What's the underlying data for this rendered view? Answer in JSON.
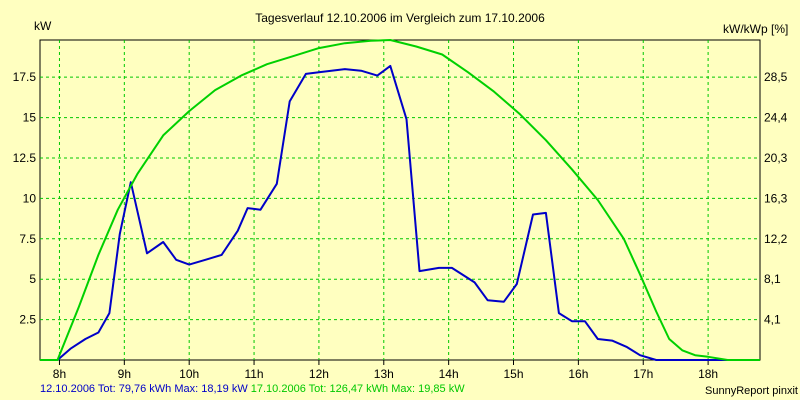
{
  "chart_data": {
    "type": "line",
    "title": "Tagesverlauf 12.10.2006 im Vergleich zum 17.10.2006",
    "ylabel_left": "kW",
    "ylabel_right": "kW/kWp [%]",
    "xlim": [
      7.7,
      18.8
    ],
    "ylim": [
      0,
      19.8
    ],
    "x_ticks": [
      8,
      9,
      10,
      11,
      12,
      13,
      14,
      15,
      16,
      17,
      18
    ],
    "x_tick_labels": [
      "8h",
      "9h",
      "10h",
      "11h",
      "12h",
      "13h",
      "14h",
      "15h",
      "16h",
      "17h",
      "18h"
    ],
    "y_ticks": [
      2.5,
      5,
      7.5,
      10,
      12.5,
      15,
      17.5
    ],
    "y_tick_labels": [
      "2.5",
      "5",
      "7.5",
      "10",
      "12.5",
      "15",
      "17.5"
    ],
    "y_right_tick_labels": [
      "4,1",
      "8,1",
      "12,2",
      "16,3",
      "20,3",
      "24,4",
      "28,5"
    ],
    "grid": true,
    "series": [
      {
        "name": "12.10.2006",
        "color": "#0000c8",
        "x": [
          7.7,
          7.97,
          8.17,
          8.4,
          8.6,
          8.77,
          8.93,
          9.1,
          9.35,
          9.6,
          9.8,
          10.0,
          10.25,
          10.5,
          10.75,
          10.9,
          11.1,
          11.35,
          11.55,
          11.8,
          12.0,
          12.4,
          12.65,
          12.9,
          13.1,
          13.35,
          13.55,
          13.85,
          14.05,
          14.4,
          14.6,
          14.85,
          15.05,
          15.3,
          15.5,
          15.7,
          15.9,
          16.1,
          16.3,
          16.52,
          16.75,
          16.95,
          17.2,
          17.4,
          17.6,
          17.9,
          18.2,
          18.5,
          18.8
        ],
        "y": [
          0,
          0,
          0.7,
          1.3,
          1.7,
          2.9,
          7.8,
          11.0,
          6.6,
          7.3,
          6.2,
          5.9,
          6.2,
          6.5,
          8.0,
          9.4,
          9.3,
          10.9,
          16.0,
          17.7,
          17.8,
          18.0,
          17.9,
          17.6,
          18.2,
          14.9,
          5.5,
          5.7,
          5.7,
          4.8,
          3.7,
          3.6,
          4.7,
          9.0,
          9.1,
          2.9,
          2.4,
          2.4,
          1.3,
          1.2,
          0.8,
          0.3,
          0,
          0,
          0,
          0,
          0,
          0,
          0
        ]
      },
      {
        "name": "17.10.2006",
        "color": "#00d000",
        "x": [
          7.7,
          7.97,
          8.3,
          8.6,
          8.9,
          9.2,
          9.6,
          10.0,
          10.4,
          10.8,
          11.2,
          11.6,
          12.0,
          12.4,
          12.8,
          13.1,
          13.5,
          13.9,
          14.3,
          14.7,
          15.1,
          15.5,
          15.9,
          16.3,
          16.7,
          16.95,
          17.2,
          17.4,
          17.6,
          17.8,
          18.0,
          18.3,
          18.8
        ],
        "y": [
          0,
          0,
          3.3,
          6.5,
          9.3,
          11.5,
          13.9,
          15.4,
          16.7,
          17.6,
          18.3,
          18.8,
          19.3,
          19.6,
          19.75,
          19.8,
          19.4,
          18.9,
          17.8,
          16.6,
          15.2,
          13.6,
          11.8,
          9.9,
          7.5,
          5.3,
          3.0,
          1.3,
          0.6,
          0.3,
          0.2,
          0,
          0
        ]
      }
    ]
  },
  "footer": {
    "series1": "12.10.2006 Tot: 79,76 kWh Max: 18,19 kW",
    "series2": "17.10.2006 Tot: 126,47 kWh Max: 19,85 kW",
    "credit": "SunnyReport pinxit"
  }
}
